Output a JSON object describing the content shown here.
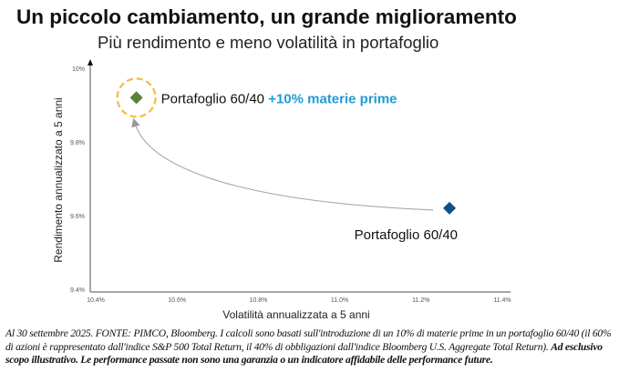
{
  "title": "Un piccolo cambiamento, un grande miglioramento",
  "subtitle": "Più rendimento e meno volatilità in portafoglio",
  "chart_data": {
    "type": "scatter",
    "xlabel": "Volatilità annualizzata a 5 anni",
    "ylabel": "Rendimento annualizzato a 5 anni",
    "xlim": [
      10.4,
      11.4
    ],
    "ylim": [
      9.4,
      10.0
    ],
    "xticks": [
      "10.4%",
      "10.6%",
      "10.8%",
      "11.0%",
      "11.2%",
      "11.4%"
    ],
    "yticks": [
      "9.4%",
      "9.6%",
      "9.8%",
      "10%"
    ],
    "grid": false,
    "points": [
      {
        "label_main": "Portafoglio 60/40",
        "label_accent": "+10% materie prime",
        "x": 10.5,
        "y": 9.92,
        "color": "#5a7f3a",
        "highlight_color": "#f2be3c"
      },
      {
        "label_main": "Portafoglio 60/40",
        "label_accent": "",
        "x": 11.27,
        "y": 9.62,
        "color": "#0d4f8a"
      }
    ],
    "accent_color": "#1f9ad6",
    "annotation": "arrow from Portafoglio 60/40 to Portafoglio 60/40 +10% materie prime"
  },
  "footnote": {
    "normal": "Al 30 settembre 2025. FONTE: PIMCO, Bloomberg. I calcoli sono basati sull'introduzione di un 10% di materie prime in un portafoglio 60/40 (il 60% di azioni è rappresentato dall'indice S&P 500 Total Return, il 40% di obbligazioni dall'indice Bloomberg U.S. Aggregate Total Return). ",
    "bold": "Ad esclusivo scopo illustrativo. Le performance passate non sono una garanzia o un indicatore affidabile delle performance future."
  }
}
